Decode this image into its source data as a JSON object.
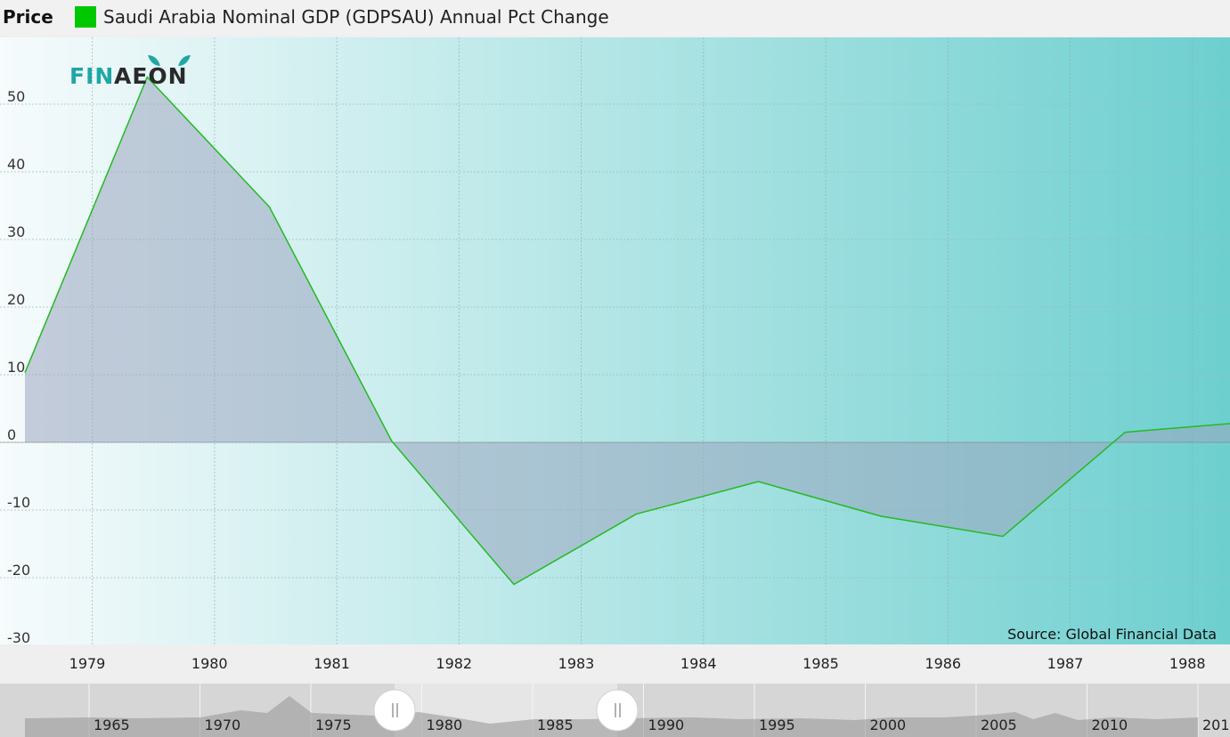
{
  "legend": {
    "title": "Price",
    "series_label": "Saudi Arabia Nominal GDP (GDPSAU) Annual Pct Change",
    "series_color": "#00c800"
  },
  "logo": {
    "text_left": "FIN",
    "text_right": "AEON",
    "icon": "finaeon-logo-icon"
  },
  "source": "Source: Global Financial Data",
  "colors": {
    "grad_start": "#f6fbfc",
    "grad_end": "#6ecfcf",
    "fill": "#9aa6c0",
    "line": "#22bb22",
    "xaxis_bg": "#efefef",
    "nav_bg": "#d6d6d6",
    "nav_window": "#e6e6e6"
  },
  "chart_data": {
    "type": "area",
    "title": "Saudi Arabia Nominal GDP (GDPSAU) Annual Pct Change",
    "xlabel": "",
    "ylabel": "",
    "ylim": [
      -30,
      55
    ],
    "y_ticks": [
      50,
      40,
      30,
      20,
      10,
      0,
      -10,
      -20,
      -30
    ],
    "x_ticks": [
      "1979",
      "1980",
      "1981",
      "1982",
      "1983",
      "1984",
      "1985",
      "1986",
      "1987",
      "1988"
    ],
    "xlim": [
      1978.35,
      1988.4
    ],
    "grid": true,
    "legend_position": "top-left",
    "series": [
      {
        "name": "Saudi Arabia Nominal GDP (GDPSAU) Annual Pct Change",
        "x": [
          1978.5,
          1979.5,
          1980.5,
          1981.5,
          1982.5,
          1983.5,
          1984.5,
          1985.5,
          1986.5,
          1987.5,
          1988.5
        ],
        "y": [
          10.3,
          54.0,
          34.8,
          0.2,
          -21.0,
          -10.6,
          -5.8,
          -10.9,
          -13.9,
          1.5,
          3.0
        ]
      }
    ],
    "navigator": {
      "labels": [
        "1965",
        "1970",
        "1975",
        "1980",
        "1985",
        "1990",
        "1995",
        "2000",
        "2005",
        "2010",
        "201"
      ]
    }
  }
}
